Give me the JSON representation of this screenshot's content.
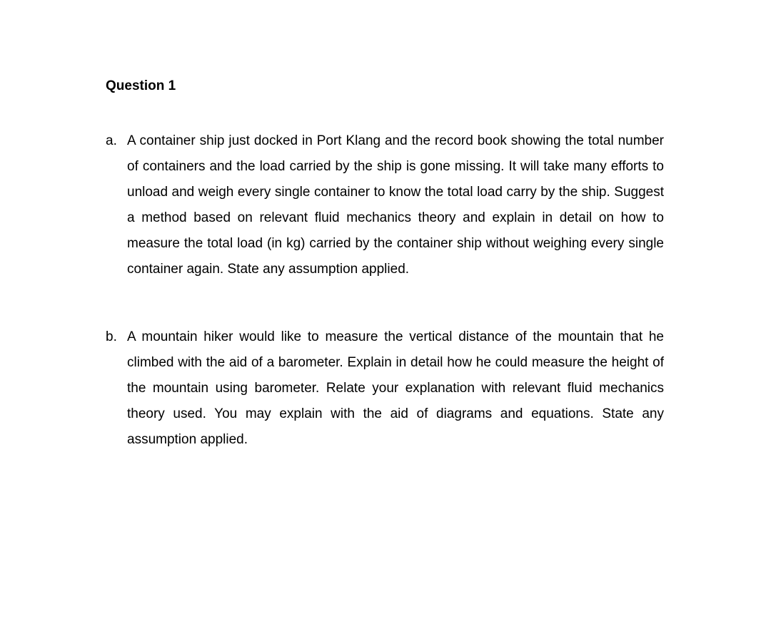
{
  "page": {
    "background_color": "#ffffff",
    "text_color": "#000000",
    "font_family": "Arial, Helvetica, sans-serif",
    "title_fontsize": 19,
    "body_fontsize": 19,
    "line_height": 1.9
  },
  "question": {
    "title": "Question 1",
    "items": [
      {
        "letter": "a.",
        "text": "A container ship just docked in Port Klang and the record book showing the total number of containers and the load carried by the ship is gone missing. It will take many efforts to unload and weigh every single container to know the total load carry by the ship. Suggest a method based on relevant fluid mechanics theory and explain in detail on how to measure the total load (in kg) carried by the container ship without weighing every single container again. State any assumption applied."
      },
      {
        "letter": "b.",
        "text": "A mountain hiker would like to measure the vertical distance of the mountain that he climbed with the aid of a barometer. Explain in detail how he could measure the height of the mountain using barometer. Relate your explanation with relevant fluid mechanics theory used. You may explain with the aid of diagrams and equations. State any assumption applied."
      }
    ]
  }
}
